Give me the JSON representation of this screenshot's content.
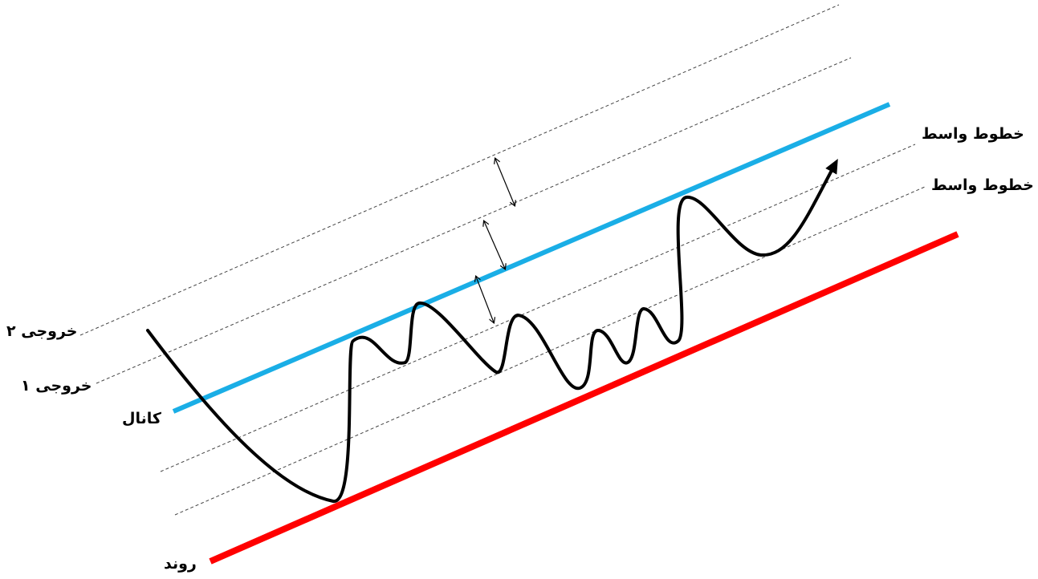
{
  "labels": {
    "exit2": "خروجی ۲",
    "exit1": "خروجی ۱",
    "channel": "کانال",
    "trend": "روند",
    "midline_top": "خطوط واسط",
    "midline_bottom": "خطوط واسط"
  },
  "colors": {
    "channel_line": "#1aaee6",
    "trend_line": "#ff0000",
    "price_path": "#000000",
    "guide_lines": "#444444"
  }
}
